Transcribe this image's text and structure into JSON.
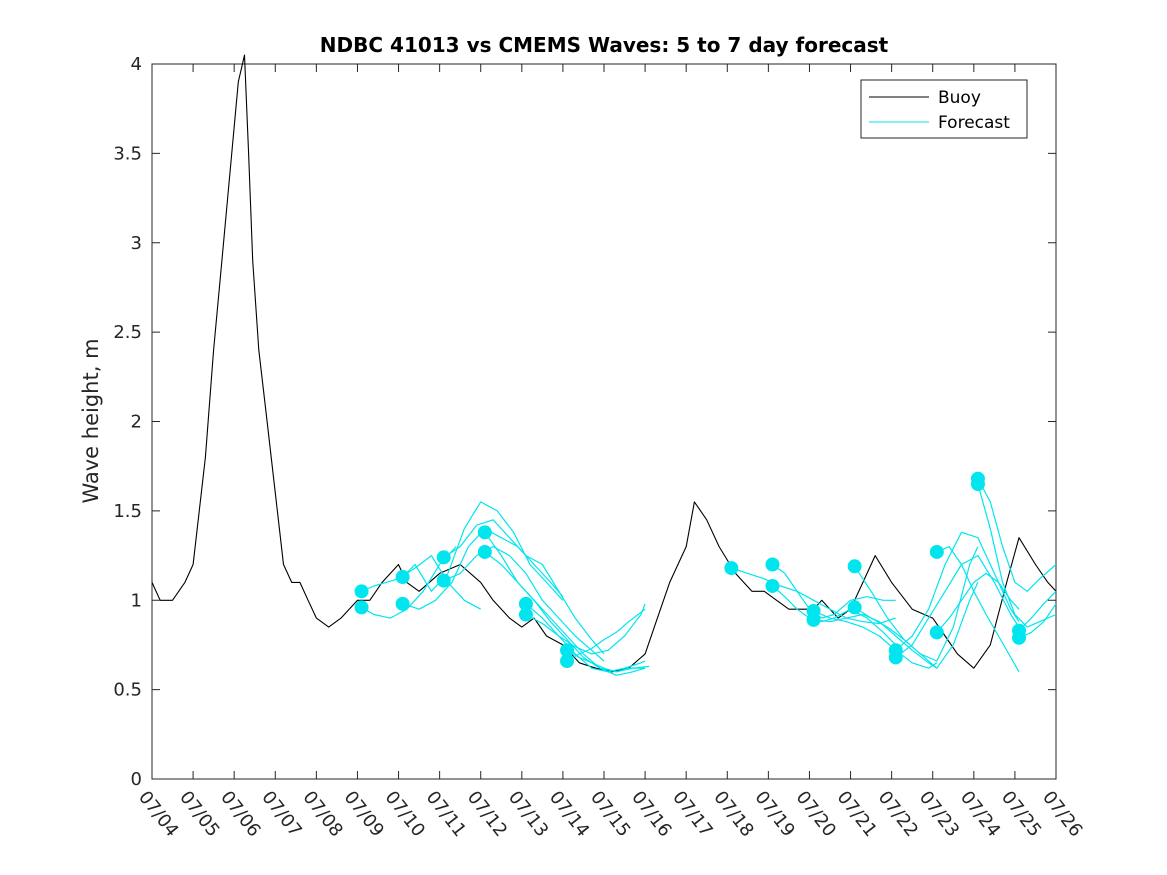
{
  "chart_data": {
    "type": "line",
    "title": "NDBC 41013 vs CMEMS Waves: 5 to 7 day forecast",
    "xlabel": "",
    "ylabel": "Wave height, m",
    "xlim": [
      "07/04",
      "07/26"
    ],
    "ylim": [
      0,
      4
    ],
    "x_tick_labels": [
      "07/04",
      "07/05",
      "07/06",
      "07/07",
      "07/08",
      "07/09",
      "07/10",
      "07/11",
      "07/12",
      "07/13",
      "07/14",
      "07/15",
      "07/16",
      "07/17",
      "07/18",
      "07/19",
      "07/20",
      "07/21",
      "07/22",
      "07/23",
      "07/24",
      "07/25",
      "07/26"
    ],
    "y_ticks": [
      0,
      0.5,
      1,
      1.5,
      2,
      2.5,
      3,
      3.5,
      4
    ],
    "y_tick_labels": [
      "0",
      "0.5",
      "1",
      "1.5",
      "2",
      "2.5",
      "3",
      "3.5",
      "4"
    ],
    "grid": false,
    "legend_position": "top-right",
    "legend": [
      {
        "label": "Buoy",
        "color": "#000000"
      },
      {
        "label": "Forecast",
        "color": "#00e5ee"
      }
    ],
    "colors": {
      "buoy": "#000000",
      "forecast": "#00e5ee"
    },
    "series": [
      {
        "name": "Buoy",
        "color": "#000000",
        "x": [
          0,
          0.2,
          0.5,
          0.8,
          1.0,
          1.1,
          1.3,
          1.5,
          1.7,
          1.9,
          2.1,
          2.25,
          2.35,
          2.45,
          2.6,
          2.8,
          3.0,
          3.2,
          3.4,
          3.6,
          3.8,
          4.0,
          4.3,
          4.6,
          5.0,
          5.3,
          5.6,
          6.0,
          6.2,
          6.5,
          7.0,
          7.5,
          8.0,
          8.3,
          8.7,
          9.0,
          9.3,
          9.6,
          10.0,
          10.4,
          10.8,
          11.2,
          11.6,
          12.0,
          12.3,
          12.6,
          13.0,
          13.2,
          13.5,
          13.8,
          14.2,
          14.6,
          14.9,
          15.2,
          15.5,
          15.8,
          16.1,
          16.3,
          16.5,
          16.7,
          17.0,
          17.3,
          17.6,
          18.0,
          18.5,
          19.0,
          19.3,
          19.6,
          20.0,
          20.4,
          20.8,
          21.1,
          21.5,
          21.8,
          22.0
        ],
        "y": [
          1.1,
          1.0,
          1.0,
          1.1,
          1.2,
          1.4,
          1.8,
          2.4,
          2.9,
          3.4,
          3.9,
          4.05,
          3.5,
          2.9,
          2.4,
          2.0,
          1.6,
          1.2,
          1.1,
          1.1,
          1.0,
          0.9,
          0.85,
          0.9,
          1.0,
          1.0,
          1.1,
          1.2,
          1.1,
          1.05,
          1.15,
          1.2,
          1.1,
          1.0,
          0.9,
          0.85,
          0.9,
          0.8,
          0.75,
          0.65,
          0.62,
          0.6,
          0.62,
          0.7,
          0.9,
          1.1,
          1.3,
          1.55,
          1.45,
          1.3,
          1.15,
          1.05,
          1.05,
          1.0,
          0.95,
          0.95,
          0.95,
          1.0,
          0.95,
          0.9,
          0.95,
          1.1,
          1.25,
          1.1,
          0.95,
          0.9,
          0.8,
          0.7,
          0.62,
          0.75,
          1.1,
          1.35,
          1.2,
          1.1,
          1.05
        ]
      },
      {
        "name": "",
        "color": "#00e5ee",
        "x": [
          5.1,
          5.4,
          5.7,
          6.0,
          6.4,
          6.8,
          7.2,
          7.6,
          8.0
        ],
        "y": [
          1.05,
          1.08,
          1.1,
          1.12,
          1.18,
          1.25,
          1.1,
          1.0,
          0.95
        ]
      },
      {
        "name": "",
        "color": "#00e5ee",
        "x": [
          5.1,
          5.4,
          5.8,
          6.2,
          6.6,
          7.0,
          7.4
        ],
        "y": [
          0.96,
          0.92,
          0.9,
          0.95,
          1.05,
          1.2,
          1.3
        ]
      },
      {
        "name": "",
        "color": "#00e5ee",
        "x": [
          6.1,
          6.4,
          6.8,
          7.2,
          7.6,
          8.0,
          8.4,
          8.8,
          9.2,
          9.6,
          10.0
        ],
        "y": [
          1.13,
          1.2,
          1.05,
          1.15,
          1.4,
          1.55,
          1.5,
          1.38,
          1.2,
          1.1,
          1.0
        ]
      },
      {
        "name": "",
        "color": "#00e5ee",
        "x": [
          6.1,
          6.5,
          6.9,
          7.3,
          7.7,
          8.1,
          8.5,
          8.9,
          9.3,
          9.7,
          10.0
        ],
        "y": [
          0.98,
          0.95,
          1.0,
          1.1,
          1.3,
          1.4,
          1.35,
          1.3,
          1.2,
          1.1,
          1.02
        ]
      },
      {
        "name": "",
        "color": "#00e5ee",
        "x": [
          7.1,
          7.5,
          7.9,
          8.3,
          8.7,
          9.1,
          9.5,
          9.9,
          10.3,
          10.7,
          11.0
        ],
        "y": [
          1.24,
          1.3,
          1.42,
          1.45,
          1.35,
          1.25,
          1.2,
          1.05,
          0.9,
          0.78,
          0.7
        ]
      },
      {
        "name": "",
        "color": "#00e5ee",
        "x": [
          7.1,
          7.5,
          7.9,
          8.3,
          8.7,
          9.1,
          9.5,
          9.9,
          10.3,
          10.7,
          11.0
        ],
        "y": [
          1.11,
          1.15,
          1.25,
          1.3,
          1.25,
          1.15,
          1.0,
          0.9,
          0.8,
          0.72,
          0.66
        ]
      },
      {
        "name": "",
        "color": "#00e5ee",
        "x": [
          8.1,
          8.5,
          8.9,
          9.3,
          9.7,
          10.1,
          10.5,
          10.9,
          11.3,
          11.7,
          12.1
        ],
        "y": [
          1.38,
          1.25,
          1.1,
          1.0,
          0.9,
          0.8,
          0.7,
          0.62,
          0.6,
          0.62,
          0.63
        ]
      },
      {
        "name": "",
        "color": "#00e5ee",
        "x": [
          8.1,
          8.5,
          8.9,
          9.3,
          9.7,
          10.1,
          10.5,
          10.9,
          11.3,
          11.7,
          12.0
        ],
        "y": [
          1.27,
          1.2,
          1.1,
          1.0,
          0.88,
          0.78,
          0.68,
          0.62,
          0.58,
          0.6,
          0.62
        ]
      },
      {
        "name": "",
        "color": "#00e5ee",
        "x": [
          9.1,
          9.5,
          9.9,
          10.3,
          10.7,
          11.1,
          11.5,
          11.9,
          12.0
        ],
        "y": [
          0.98,
          0.9,
          0.8,
          0.7,
          0.62,
          0.6,
          0.62,
          0.65,
          0.66
        ]
      },
      {
        "name": "",
        "color": "#00e5ee",
        "x": [
          9.1,
          9.5,
          9.9,
          10.3,
          10.7,
          11.1,
          11.5,
          11.9,
          12.0
        ],
        "y": [
          0.92,
          0.87,
          0.8,
          0.74,
          0.7,
          0.72,
          0.8,
          0.92,
          0.98
        ]
      },
      {
        "name": "",
        "color": "#00e5ee",
        "x": [
          10.1,
          10.4,
          10.7,
          11.0,
          11.3,
          11.6,
          12.0
        ],
        "y": [
          0.72,
          0.68,
          0.65,
          0.62,
          0.6,
          0.62,
          0.62
        ]
      },
      {
        "name": "",
        "color": "#00e5ee",
        "x": [
          10.1,
          10.4,
          10.7,
          11.0,
          11.3,
          11.6,
          12.0
        ],
        "y": [
          0.66,
          0.7,
          0.73,
          0.78,
          0.82,
          0.88,
          0.95
        ]
      },
      {
        "name": "",
        "color": "#00e5ee",
        "x": [
          14.1,
          14.5,
          14.9,
          15.3,
          15.7,
          16.1,
          16.5,
          16.9,
          17.3,
          17.7,
          18.1
        ],
        "y": [
          1.18,
          1.15,
          1.12,
          1.08,
          1.05,
          1.0,
          0.95,
          0.9,
          0.88,
          0.87,
          0.9
        ]
      },
      {
        "name": "",
        "color": "#00e5ee",
        "x": [
          15.1,
          15.4,
          15.7,
          16.0,
          16.3,
          16.6,
          17.0,
          17.4,
          17.8,
          18.1
        ],
        "y": [
          1.2,
          1.15,
          1.05,
          0.95,
          0.9,
          0.92,
          1.0,
          1.02,
          1.0,
          1.0
        ]
      },
      {
        "name": "",
        "color": "#00e5ee",
        "x": [
          15.1,
          15.4,
          15.7,
          16.0,
          16.3,
          16.6,
          17.0,
          17.4,
          17.8,
          18.1
        ],
        "y": [
          1.08,
          1.02,
          0.95,
          0.9,
          0.88,
          0.9,
          0.95,
          0.9,
          0.82,
          0.75
        ]
      },
      {
        "name": "",
        "color": "#00e5ee",
        "x": [
          16.1,
          16.5,
          16.9,
          17.3,
          17.7,
          18.1,
          18.5,
          18.9,
          19.1
        ],
        "y": [
          0.94,
          0.9,
          0.88,
          0.85,
          0.8,
          0.72,
          0.65,
          0.62,
          0.65
        ]
      },
      {
        "name": "",
        "color": "#00e5ee",
        "x": [
          16.1,
          16.5,
          16.9,
          17.3,
          17.7,
          18.1,
          18.5,
          18.9,
          19.1
        ],
        "y": [
          0.89,
          0.88,
          0.9,
          0.92,
          0.88,
          0.8,
          0.72,
          0.65,
          0.62
        ]
      },
      {
        "name": "",
        "color": "#00e5ee",
        "x": [
          17.1,
          17.5,
          17.9,
          18.3,
          18.7,
          19.1,
          19.5,
          19.9,
          20.1
        ],
        "y": [
          1.19,
          1.05,
          0.9,
          0.78,
          0.7,
          0.66,
          0.85,
          1.2,
          1.3
        ]
      },
      {
        "name": "",
        "color": "#00e5ee",
        "x": [
          17.1,
          17.5,
          17.9,
          18.3,
          18.7,
          19.1,
          19.5,
          19.9,
          20.1
        ],
        "y": [
          0.96,
          0.9,
          0.85,
          0.78,
          0.7,
          0.62,
          0.75,
          1.0,
          1.1
        ]
      },
      {
        "name": "",
        "color": "#00e5ee",
        "x": [
          18.1,
          18.5,
          18.9,
          19.3,
          19.7,
          20.1,
          20.5,
          20.9,
          21.1
        ],
        "y": [
          0.72,
          0.8,
          0.95,
          1.2,
          1.38,
          1.35,
          1.15,
          0.95,
          0.88
        ]
      },
      {
        "name": "",
        "color": "#00e5ee",
        "x": [
          18.1,
          18.5,
          18.9,
          19.3,
          19.7,
          20.1,
          20.5,
          20.9,
          21.1
        ],
        "y": [
          0.68,
          0.75,
          0.9,
          1.05,
          1.2,
          1.25,
          1.1,
          0.92,
          0.85
        ]
      },
      {
        "name": "",
        "color": "#00e5ee",
        "x": [
          19.1,
          19.4,
          19.7,
          20.0,
          20.3,
          20.6,
          20.9,
          21.1
        ],
        "y": [
          1.27,
          1.3,
          1.2,
          1.05,
          0.92,
          0.8,
          0.68,
          0.6
        ]
      },
      {
        "name": "",
        "color": "#00e5ee",
        "x": [
          19.1,
          19.4,
          19.7,
          20.0,
          20.3,
          20.6,
          20.9,
          21.1
        ],
        "y": [
          0.82,
          0.9,
          1.0,
          1.1,
          1.15,
          1.1,
          1.0,
          0.95
        ]
      },
      {
        "name": "",
        "color": "#00e5ee",
        "x": [
          20.1,
          20.4,
          20.7,
          21.0,
          21.3,
          21.6,
          22.0
        ],
        "y": [
          1.68,
          1.55,
          1.3,
          1.1,
          1.05,
          1.12,
          1.2
        ]
      },
      {
        "name": "",
        "color": "#00e5ee",
        "x": [
          20.1,
          20.4,
          20.7,
          21.0,
          21.3,
          21.6,
          22.0
        ],
        "y": [
          1.65,
          1.4,
          1.1,
          0.92,
          0.85,
          0.88,
          0.92
        ]
      },
      {
        "name": "",
        "color": "#00e5ee",
        "x": [
          21.1,
          21.4,
          21.7,
          22.0
        ],
        "y": [
          0.83,
          0.9,
          0.98,
          1.05
        ]
      },
      {
        "name": "",
        "color": "#00e5ee",
        "x": [
          21.1,
          21.4,
          21.7,
          22.0
        ],
        "y": [
          0.79,
          0.82,
          0.88,
          0.98
        ]
      }
    ],
    "forecast_markers": [
      {
        "x": 5.1,
        "y": 1.05
      },
      {
        "x": 5.1,
        "y": 0.96
      },
      {
        "x": 6.1,
        "y": 1.13
      },
      {
        "x": 6.1,
        "y": 0.98
      },
      {
        "x": 7.1,
        "y": 1.24
      },
      {
        "x": 7.1,
        "y": 1.11
      },
      {
        "x": 8.1,
        "y": 1.38
      },
      {
        "x": 8.1,
        "y": 1.27
      },
      {
        "x": 9.1,
        "y": 0.98
      },
      {
        "x": 9.1,
        "y": 0.92
      },
      {
        "x": 10.1,
        "y": 0.72
      },
      {
        "x": 10.1,
        "y": 0.66
      },
      {
        "x": 14.1,
        "y": 1.18
      },
      {
        "x": 15.1,
        "y": 1.2
      },
      {
        "x": 15.1,
        "y": 1.08
      },
      {
        "x": 16.1,
        "y": 0.94
      },
      {
        "x": 16.1,
        "y": 0.89
      },
      {
        "x": 17.1,
        "y": 1.19
      },
      {
        "x": 17.1,
        "y": 0.96
      },
      {
        "x": 18.1,
        "y": 0.72
      },
      {
        "x": 18.1,
        "y": 0.68
      },
      {
        "x": 19.1,
        "y": 1.27
      },
      {
        "x": 19.1,
        "y": 0.82
      },
      {
        "x": 20.1,
        "y": 1.68
      },
      {
        "x": 20.1,
        "y": 1.65
      },
      {
        "x": 21.1,
        "y": 0.83
      },
      {
        "x": 21.1,
        "y": 0.79
      }
    ]
  }
}
